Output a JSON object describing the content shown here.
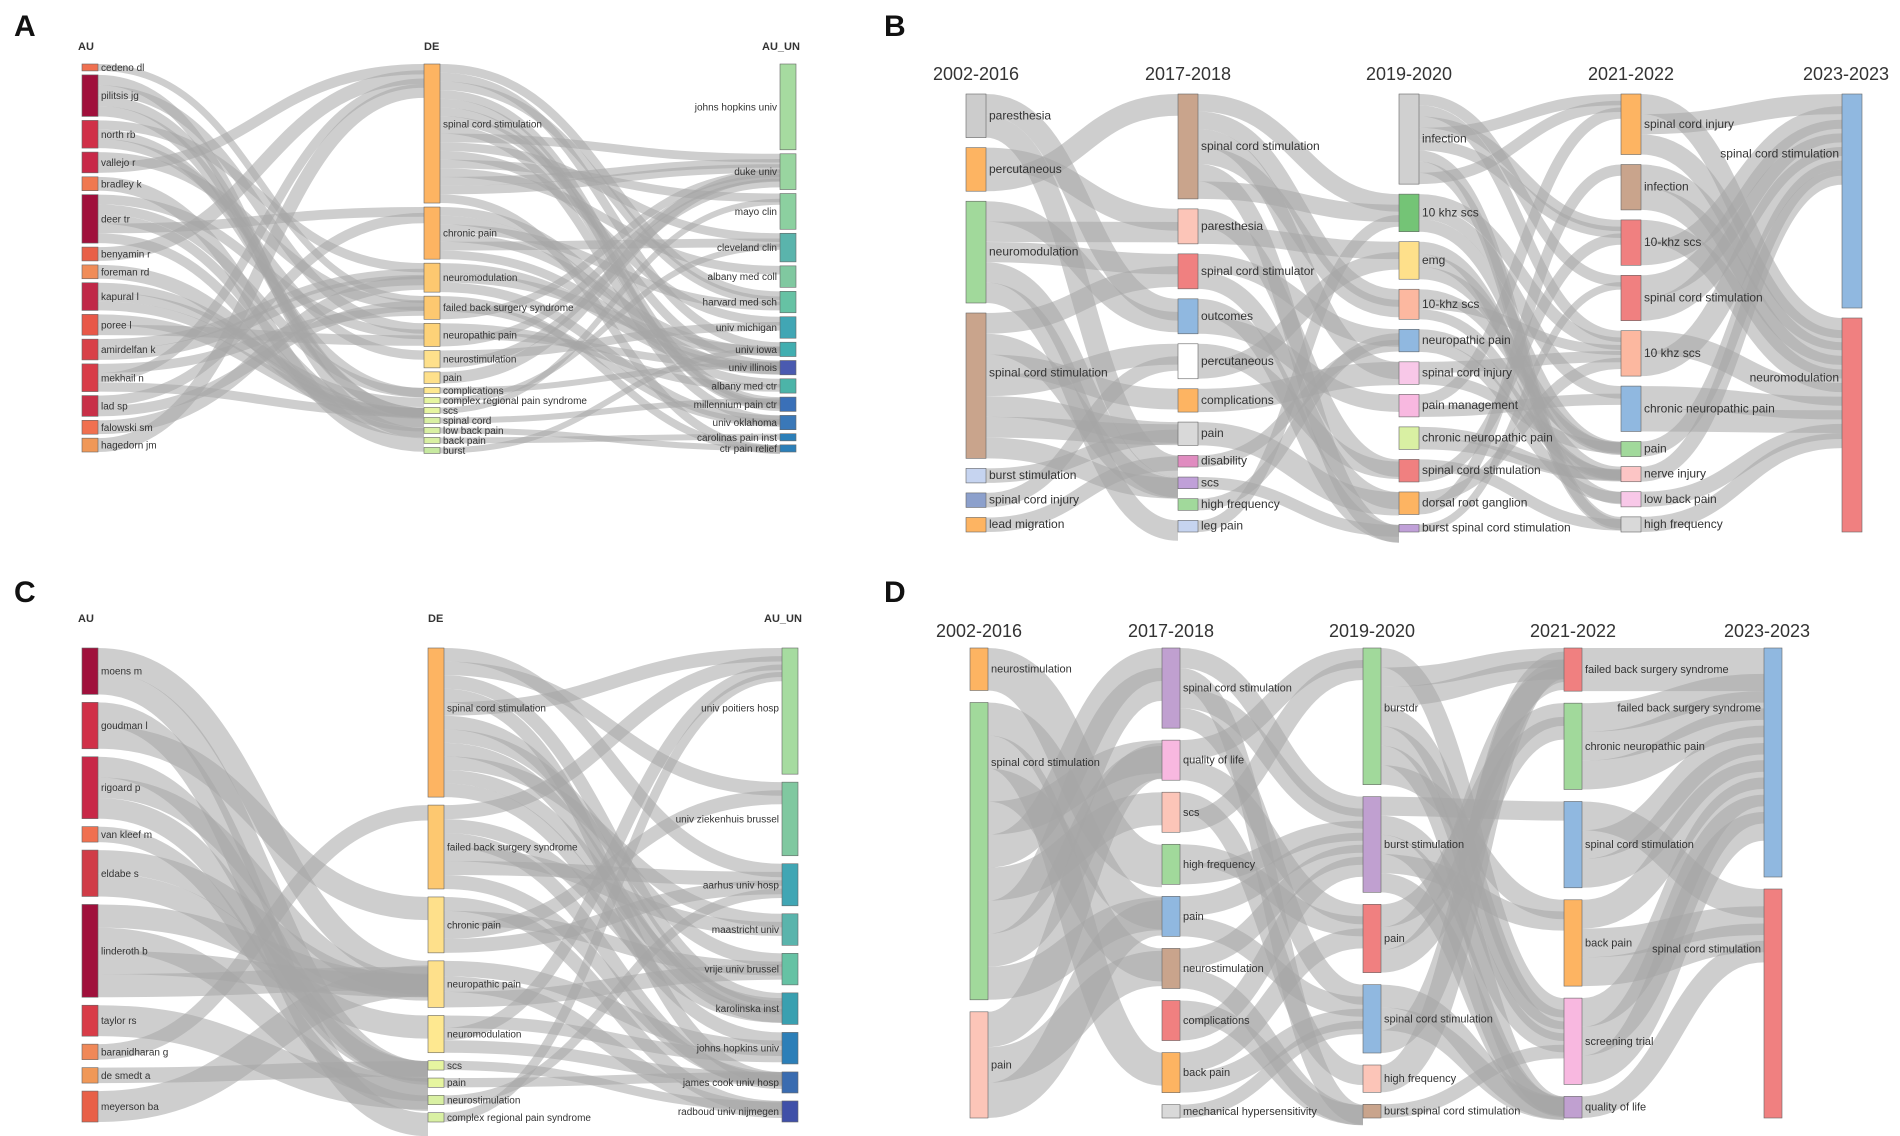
{
  "panels": [
    {
      "id": "A",
      "letter": "A",
      "columns": [
        "AU",
        "DE",
        "AU_UN"
      ],
      "nodes": [
        [
          {
            "label": "cedeno dl",
            "color": "#f07050",
            "w": 1
          },
          {
            "label": "pilitsis jg",
            "color": "#a0103c",
            "w": 6
          },
          {
            "label": "north rb",
            "color": "#d03048",
            "w": 4
          },
          {
            "label": "vallejo r",
            "color": "#c82848",
            "w": 3
          },
          {
            "label": "bradley k",
            "color": "#f07850",
            "w": 2
          },
          {
            "label": "deer tr",
            "color": "#a0103c",
            "w": 7
          },
          {
            "label": "benyamin r",
            "color": "#e86048",
            "w": 2
          },
          {
            "label": "foreman rd",
            "color": "#f08c58",
            "w": 2
          },
          {
            "label": "kapural l",
            "color": "#c02848",
            "w": 4
          },
          {
            "label": "poree l",
            "color": "#e85848",
            "w": 3
          },
          {
            "label": "amirdelfan k",
            "color": "#d84048",
            "w": 3
          },
          {
            "label": "mekhail n",
            "color": "#d83c48",
            "w": 4
          },
          {
            "label": "lad sp",
            "color": "#c83048",
            "w": 3
          },
          {
            "label": "falowski sm",
            "color": "#f07050",
            "w": 2
          },
          {
            "label": "hagedorn jm",
            "color": "#f09858",
            "w": 2
          }
        ],
        [
          {
            "label": "spinal cord stimulation",
            "color": "#fdb462",
            "w": 24
          },
          {
            "label": "chronic pain",
            "color": "#fdb462",
            "w": 9
          },
          {
            "label": "neuromodulation",
            "color": "#fdc870",
            "w": 5
          },
          {
            "label": "failed back surgery syndrome",
            "color": "#fdc870",
            "w": 4
          },
          {
            "label": "neuropathic pain",
            "color": "#fdd278",
            "w": 4
          },
          {
            "label": "neurostimulation",
            "color": "#fee08b",
            "w": 3
          },
          {
            "label": "pain",
            "color": "#fee08b",
            "w": 2
          },
          {
            "label": "complications",
            "color": "#fee890",
            "w": 1
          },
          {
            "label": "complex regional pain syndrome",
            "color": "#e6f5a0",
            "w": 1
          },
          {
            "label": "scs",
            "color": "#e6f5a0",
            "w": 1
          },
          {
            "label": "spinal cord",
            "color": "#d9f0a3",
            "w": 1
          },
          {
            "label": "low back pain",
            "color": "#d9f0a3",
            "w": 1
          },
          {
            "label": "back pain",
            "color": "#d9f0a3",
            "w": 1
          },
          {
            "label": "burst",
            "color": "#c7e9a0",
            "w": 1
          }
        ],
        [
          {
            "label": "johns hopkins univ",
            "color": "#a6dba0",
            "w": 12
          },
          {
            "label": "duke univ",
            "color": "#99d5a0",
            "w": 5
          },
          {
            "label": "mayo clin",
            "color": "#8cd0a0",
            "w": 5
          },
          {
            "label": "cleveland clin",
            "color": "#5ab4ac",
            "w": 4
          },
          {
            "label": "albany med coll",
            "color": "#80c8a0",
            "w": 3
          },
          {
            "label": "harvard med sch",
            "color": "#66c2a4",
            "w": 3
          },
          {
            "label": "univ michigan",
            "color": "#41a6b4",
            "w": 3
          },
          {
            "label": "univ iowa",
            "color": "#41aeb0",
            "w": 2
          },
          {
            "label": "univ illinois",
            "color": "#4a5ab0",
            "w": 2
          },
          {
            "label": "albany med ctr",
            "color": "#4cb4a8",
            "w": 2
          },
          {
            "label": "millennium pain ctr",
            "color": "#3a70b8",
            "w": 2
          },
          {
            "label": "univ oklahoma",
            "color": "#3a78b8",
            "w": 2
          },
          {
            "label": "carolinas pain inst",
            "color": "#2c7fb8",
            "w": 1
          },
          {
            "label": "ctr pain relief",
            "color": "#2c7fb8",
            "w": 1
          }
        ]
      ]
    },
    {
      "id": "B",
      "letter": "B",
      "columns": [
        "2002-2016",
        "2017-2018",
        "2019-2020",
        "2021-2022",
        "2023-2023"
      ],
      "nodes": [
        [
          {
            "label": "paresthesia",
            "color": "#cccccc",
            "w": 3
          },
          {
            "label": "percutaneous",
            "color": "#fdb462",
            "w": 3
          },
          {
            "label": "neuromodulation",
            "color": "#a1d99b",
            "w": 7
          },
          {
            "label": "spinal cord stimulation",
            "color": "#c9a48c",
            "w": 10
          },
          {
            "label": "burst stimulation",
            "color": "#c6d4f0",
            "w": 1
          },
          {
            "label": "spinal cord injury",
            "color": "#8ca0cc",
            "w": 1
          },
          {
            "label": "lead migration",
            "color": "#fdb462",
            "w": 1
          }
        ],
        [
          {
            "label": "spinal cord stimulation",
            "color": "#c9a48c",
            "w": 9
          },
          {
            "label": "paresthesia",
            "color": "#fcc5b8",
            "w": 3
          },
          {
            "label": "spinal cord stimulator",
            "color": "#f08080",
            "w": 3
          },
          {
            "label": "outcomes",
            "color": "#90b8e0",
            "w": 3
          },
          {
            "label": "percutaneous",
            "color": "#ffffff",
            "w": 3
          },
          {
            "label": "complications",
            "color": "#fdb462",
            "w": 2
          },
          {
            "label": "pain",
            "color": "#d9d9d9",
            "w": 2
          },
          {
            "label": "disability",
            "color": "#e08cc0",
            "w": 1
          },
          {
            "label": "scs",
            "color": "#c0a0d8",
            "w": 1
          },
          {
            "label": "high frequency",
            "color": "#a1d99b",
            "w": 1
          },
          {
            "label": "leg pain",
            "color": "#c6d4f0",
            "w": 1
          }
        ],
        [
          {
            "label": "infection",
            "color": "#d0d0d0",
            "w": 12
          },
          {
            "label": "10 khz scs",
            "color": "#74c476",
            "w": 5
          },
          {
            "label": "emg",
            "color": "#fee08b",
            "w": 5
          },
          {
            "label": "10-khz scs",
            "color": "#fcb8a0",
            "w": 4
          },
          {
            "label": "neuropathic pain",
            "color": "#90b8e0",
            "w": 3
          },
          {
            "label": "spinal cord injury",
            "color": "#f8c8e8",
            "w": 3
          },
          {
            "label": "pain management",
            "color": "#f8b8e0",
            "w": 3
          },
          {
            "label": "chronic neuropathic pain",
            "color": "#d9f0a3",
            "w": 3
          },
          {
            "label": "spinal cord stimulation",
            "color": "#f08080",
            "w": 3
          },
          {
            "label": "dorsal root ganglion",
            "color": "#fdb462",
            "w": 3
          },
          {
            "label": "burst spinal cord stimulation",
            "color": "#c0a0d8",
            "w": 1
          }
        ],
        [
          {
            "label": "spinal cord injury",
            "color": "#fdb462",
            "w": 4
          },
          {
            "label": "infection",
            "color": "#c9a48c",
            "w": 3
          },
          {
            "label": "10-khz scs",
            "color": "#f08080",
            "w": 3
          },
          {
            "label": "spinal cord stimulation",
            "color": "#f08080",
            "w": 3
          },
          {
            "label": "10 khz scs",
            "color": "#fcb8a0",
            "w": 3
          },
          {
            "label": "chronic neuropathic pain",
            "color": "#90b8e0",
            "w": 3
          },
          {
            "label": "pain",
            "color": "#a1d99b",
            "w": 1
          },
          {
            "label": "nerve injury",
            "color": "#fcc5c5",
            "w": 1
          },
          {
            "label": "low back pain",
            "color": "#f8c8e8",
            "w": 1
          },
          {
            "label": "high frequency",
            "color": "#d9d9d9",
            "w": 1
          }
        ],
        [
          {
            "label": "spinal cord stimulation",
            "color": "#90b8e0",
            "w": 3
          },
          {
            "label": "neuromodulation",
            "color": "#f08080",
            "w": 3
          }
        ]
      ]
    },
    {
      "id": "C",
      "letter": "C",
      "columns": [
        "AU",
        "DE",
        "AU_UN"
      ],
      "nodes": [
        [
          {
            "label": "moens m",
            "color": "#a0103c",
            "w": 3
          },
          {
            "label": "goudman l",
            "color": "#d03048",
            "w": 3
          },
          {
            "label": "rigoard p",
            "color": "#c82848",
            "w": 4
          },
          {
            "label": "van kleef m",
            "color": "#f07050",
            "w": 1
          },
          {
            "label": "eldabe s",
            "color": "#d03c48",
            "w": 3
          },
          {
            "label": "linderoth b",
            "color": "#a0103c",
            "w": 6
          },
          {
            "label": "taylor rs",
            "color": "#d83c48",
            "w": 2
          },
          {
            "label": "baranidharan g",
            "color": "#f08858",
            "w": 1
          },
          {
            "label": "de smedt a",
            "color": "#f09858",
            "w": 1
          },
          {
            "label": "meyerson ba",
            "color": "#e86048",
            "w": 2
          }
        ],
        [
          {
            "label": "spinal cord stimulation",
            "color": "#fdb462",
            "w": 16
          },
          {
            "label": "failed back surgery syndrome",
            "color": "#fdc870",
            "w": 9
          },
          {
            "label": "chronic pain",
            "color": "#fee08b",
            "w": 6
          },
          {
            "label": "neuropathic pain",
            "color": "#fee08b",
            "w": 5
          },
          {
            "label": "neuromodulation",
            "color": "#fee890",
            "w": 4
          },
          {
            "label": "scs",
            "color": "#e6f5a0",
            "w": 1
          },
          {
            "label": "pain",
            "color": "#e6f5a0",
            "w": 1
          },
          {
            "label": "neurostimulation",
            "color": "#d9f0a3",
            "w": 1
          },
          {
            "label": "complex regional pain syndrome",
            "color": "#d9f0a3",
            "w": 1
          }
        ],
        [
          {
            "label": "univ poitiers hosp",
            "color": "#a6dba0",
            "w": 12
          },
          {
            "label": "univ ziekenhuis brussel",
            "color": "#80c8a0",
            "w": 7
          },
          {
            "label": "aarhus univ hosp",
            "color": "#41a6b4",
            "w": 4
          },
          {
            "label": "maastricht univ",
            "color": "#5ab4ac",
            "w": 3
          },
          {
            "label": "vrije univ brussel",
            "color": "#66c2a4",
            "w": 3
          },
          {
            "label": "karolinska inst",
            "color": "#3aa0b0",
            "w": 3
          },
          {
            "label": "johns hopkins univ",
            "color": "#2c7fb8",
            "w": 3
          },
          {
            "label": "james cook univ hosp",
            "color": "#3a6cb0",
            "w": 2
          },
          {
            "label": "radboud univ nijmegen",
            "color": "#4050a8",
            "w": 2
          }
        ]
      ]
    },
    {
      "id": "D",
      "letter": "D",
      "columns": [
        "2002-2016",
        "2017-2018",
        "2019-2020",
        "2021-2022",
        "2023-2023"
      ],
      "nodes": [
        [
          {
            "label": "neurostimulation",
            "color": "#fdb462",
            "w": 2
          },
          {
            "label": "spinal cord stimulation",
            "color": "#a1d99b",
            "w": 14
          },
          {
            "label": "pain",
            "color": "#fcc5b8",
            "w": 5
          }
        ],
        [
          {
            "label": "spinal cord stimulation",
            "color": "#c0a0d0",
            "w": 6
          },
          {
            "label": "quality of life",
            "color": "#f8b8e0",
            "w": 3
          },
          {
            "label": "scs",
            "color": "#fcc5b8",
            "w": 3
          },
          {
            "label": "high frequency",
            "color": "#a1d99b",
            "w": 3
          },
          {
            "label": "pain",
            "color": "#90b8e0",
            "w": 3
          },
          {
            "label": "neurostimulation",
            "color": "#c9a48c",
            "w": 3
          },
          {
            "label": "complications",
            "color": "#f08080",
            "w": 3
          },
          {
            "label": "back pain",
            "color": "#fdb462",
            "w": 3
          },
          {
            "label": "mechanical hypersensitivity",
            "color": "#d9d9d9",
            "w": 1
          }
        ],
        [
          {
            "label": "burstdr",
            "color": "#a1d99b",
            "w": 10
          },
          {
            "label": "burst stimulation",
            "color": "#c0a0d0",
            "w": 7
          },
          {
            "label": "pain",
            "color": "#f08080",
            "w": 5
          },
          {
            "label": "spinal cord stimulation",
            "color": "#90b8e0",
            "w": 5
          },
          {
            "label": "high frequency",
            "color": "#fcc5b8",
            "w": 2
          },
          {
            "label": "burst spinal cord stimulation",
            "color": "#c9a48c",
            "w": 1
          }
        ],
        [
          {
            "label": "failed back surgery syndrome",
            "color": "#f08080",
            "w": 2
          },
          {
            "label": "chronic neuropathic pain",
            "color": "#a1d99b",
            "w": 4
          },
          {
            "label": "spinal cord stimulation",
            "color": "#90b8e0",
            "w": 4
          },
          {
            "label": "back pain",
            "color": "#fdb462",
            "w": 4
          },
          {
            "label": "screening trial",
            "color": "#f8b8e0",
            "w": 4
          },
          {
            "label": "quality of life",
            "color": "#c0a0d0",
            "w": 1
          }
        ],
        [
          {
            "label": "failed back surgery syndrome",
            "color": "#90b8e0",
            "w": 4
          },
          {
            "label": "spinal cord stimulation",
            "color": "#f08080",
            "w": 4
          }
        ]
      ]
    }
  ]
}
